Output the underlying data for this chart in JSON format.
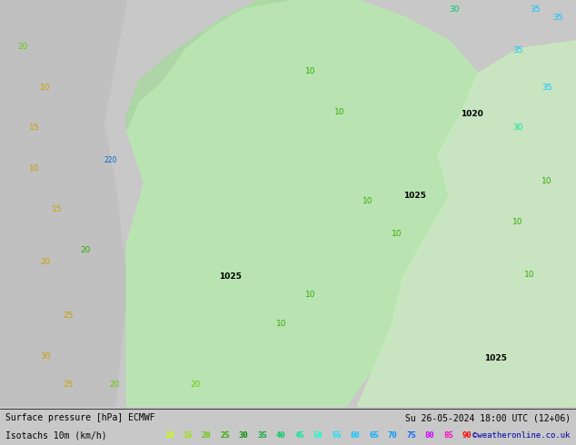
{
  "title_left": "Surface pressure [hPa] ECMWF",
  "title_right": "Su 26-05-2024 18:00 UTC (12+06)",
  "legend_label": "Isotachs 10m (km/h)",
  "copyright": "©weatheronline.co.uk",
  "legend_values": [
    10,
    15,
    20,
    25,
    30,
    35,
    40,
    45,
    50,
    55,
    60,
    65,
    70,
    75,
    80,
    85,
    90
  ],
  "legend_colors": [
    "#c8ff00",
    "#96e600",
    "#64c800",
    "#32aa00",
    "#008c00",
    "#00aa32",
    "#00c864",
    "#00e696",
    "#00ffc8",
    "#00e6ff",
    "#00c8ff",
    "#00aaff",
    "#0096ff",
    "#0064ff",
    "#c800ff",
    "#ff00c8",
    "#ff0000"
  ],
  "fig_width": 6.34,
  "fig_height": 4.9,
  "dpi": 100
}
